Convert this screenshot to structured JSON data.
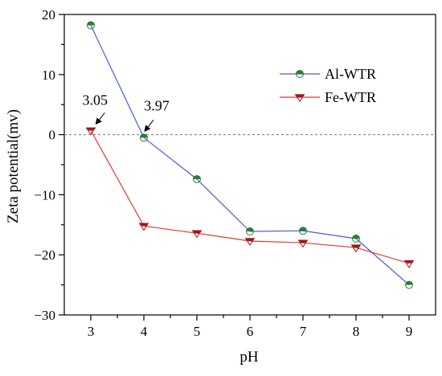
{
  "chart_data": {
    "type": "line",
    "xlabel": "pH",
    "ylabel": "Zeta potential(mv)",
    "xlim": [
      2.5,
      9.5
    ],
    "ylim": [
      -30,
      20
    ],
    "x_ticks": [
      3,
      4,
      5,
      6,
      7,
      8,
      9
    ],
    "y_ticks": [
      20,
      10,
      0,
      -10,
      -20,
      -30
    ],
    "y_tick_labels": [
      "20",
      "10",
      "0",
      "−10",
      "−20",
      "−30"
    ],
    "reference_line_y": 0,
    "legend_position": "top-right",
    "series": [
      {
        "name": "Al-WTR",
        "color": "#4a5bd4",
        "marker": "half-filled-circle",
        "marker_color": "#2e7d32",
        "x": [
          3,
          4,
          5,
          6,
          7,
          8,
          9
        ],
        "y": [
          18.2,
          -0.5,
          -7.4,
          -16.1,
          -16.0,
          -17.3,
          -25.0
        ]
      },
      {
        "name": "Fe-WTR",
        "color": "#e53935",
        "marker": "half-filled-down-triangle",
        "marker_color": "#a01818",
        "x": [
          3,
          4,
          5,
          6,
          7,
          8,
          9
        ],
        "y": [
          0.7,
          -15.2,
          -16.4,
          -17.7,
          -18.0,
          -18.8,
          -21.4
        ]
      }
    ],
    "annotations": [
      {
        "text": "3.05",
        "x": 3.05,
        "y": 0.7
      },
      {
        "text": "3.97",
        "x": 3.97,
        "y": -0.5
      }
    ]
  }
}
